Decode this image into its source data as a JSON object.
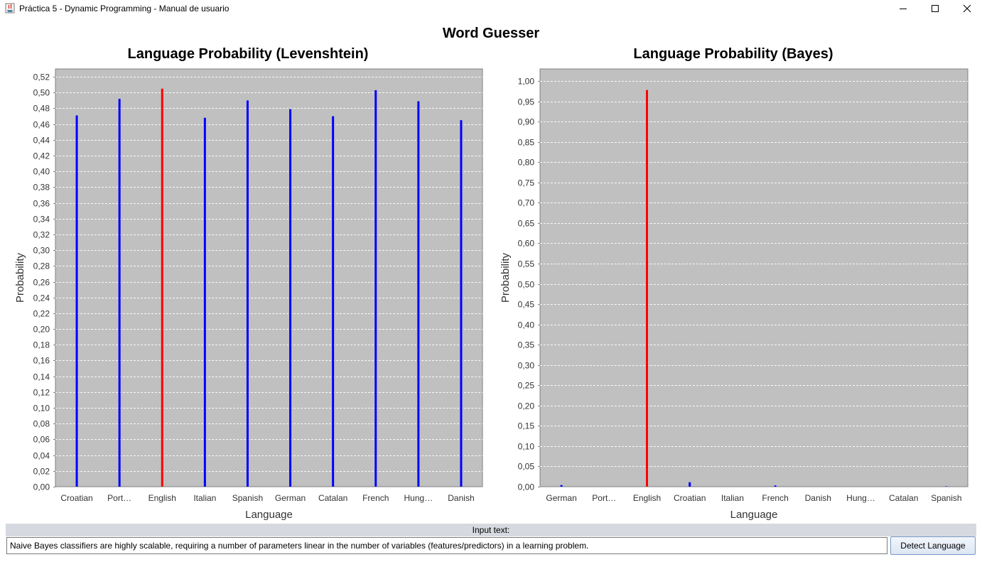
{
  "window": {
    "title": "Práctica 5 - Dynamic Programming - Manual de usuario"
  },
  "app": {
    "title": "Word Guesser"
  },
  "colors": {
    "plot_bg": "#c0c0c0",
    "bar_default": "#0000ff",
    "bar_highlight": "#ff0000",
    "grid": "#ffffff"
  },
  "chart_data": [
    {
      "type": "bar",
      "title": "Language Probability (Levenshtein)",
      "xlabel": "Language",
      "ylabel": "Probability",
      "categories": [
        "Croatian",
        "Port…",
        "English",
        "Italian",
        "Spanish",
        "German",
        "Catalan",
        "French",
        "Hung…",
        "Danish"
      ],
      "values": [
        0.471,
        0.492,
        0.505,
        0.468,
        0.49,
        0.479,
        0.47,
        0.503,
        0.489,
        0.465
      ],
      "highlight_index": 2,
      "ylim": [
        0,
        0.53
      ],
      "ytick_step": 0.02,
      "ytick_labels": [
        "0,00",
        "0,02",
        "0,04",
        "0,06",
        "0,08",
        "0,10",
        "0,12",
        "0,14",
        "0,16",
        "0,18",
        "0,20",
        "0,22",
        "0,24",
        "0,26",
        "0,28",
        "0,30",
        "0,32",
        "0,34",
        "0,36",
        "0,38",
        "0,40",
        "0,42",
        "0,44",
        "0,46",
        "0,48",
        "0,50",
        "0,52"
      ],
      "grid": true
    },
    {
      "type": "bar",
      "title": "Language Probability (Bayes)",
      "xlabel": "Language",
      "ylabel": "Probability",
      "categories": [
        "German",
        "Port…",
        "English",
        "Croatian",
        "Italian",
        "French",
        "Danish",
        "Hung…",
        "Catalan",
        "Spanish"
      ],
      "values": [
        0.004,
        0.0,
        0.978,
        0.011,
        0.0,
        0.003,
        0.0,
        0.0,
        0.0,
        0.001
      ],
      "highlight_index": 2,
      "ylim": [
        0,
        1.03
      ],
      "ytick_step": 0.05,
      "ytick_labels": [
        "0,00",
        "0,05",
        "0,10",
        "0,15",
        "0,20",
        "0,25",
        "0,30",
        "0,35",
        "0,40",
        "0,45",
        "0,50",
        "0,55",
        "0,60",
        "0,65",
        "0,70",
        "0,75",
        "0,80",
        "0,85",
        "0,90",
        "0,95",
        "1,00"
      ],
      "grid": true
    }
  ],
  "input": {
    "label": "Input text:",
    "value": "Naive Bayes classifiers are highly scalable, requiring a number of parameters linear in the number of variables (features/predictors) in a learning problem."
  },
  "detect_button": {
    "label": "Detect Language"
  }
}
